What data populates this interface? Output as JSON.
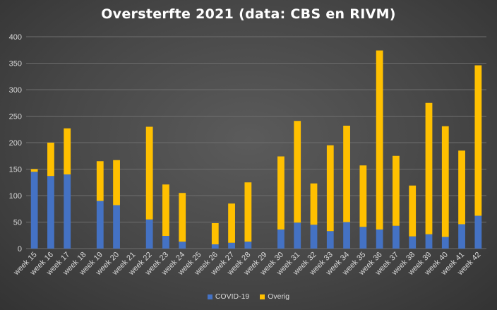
{
  "chart_data": {
    "type": "bar",
    "stacked": true,
    "title": "Oversterfte 2021 (data: CBS en RIVM)",
    "xlabel": "",
    "ylabel": "",
    "ylim": [
      0,
      400
    ],
    "yticks": [
      0,
      50,
      100,
      150,
      200,
      250,
      300,
      350,
      400
    ],
    "grid": true,
    "legend_position": "bottom",
    "categories": [
      "week 15",
      "week 16",
      "week 17",
      "week 18",
      "week 19",
      "week 20",
      "week 21",
      "week 22",
      "week 23",
      "week 24",
      "week 25",
      "week 26",
      "week 27",
      "week 28",
      "week 29",
      "week 30",
      "week 31",
      "week 32",
      "week 33",
      "week 34",
      "week 35",
      "week 36",
      "week 37",
      "week 38",
      "week 39",
      "week 40",
      "week 41",
      "week 42"
    ],
    "series": [
      {
        "name": "COVID-19",
        "color": "#4472c4",
        "values": [
          145,
          137,
          140,
          0,
          90,
          82,
          0,
          55,
          24,
          13,
          0,
          8,
          11,
          13,
          0,
          36,
          49,
          45,
          33,
          50,
          41,
          36,
          43,
          23,
          27,
          22,
          46,
          62
        ]
      },
      {
        "name": "Overig",
        "color": "#ffc000",
        "values": [
          5,
          63,
          87,
          0,
          75,
          85,
          0,
          175,
          97,
          92,
          0,
          40,
          74,
          112,
          0,
          138,
          192,
          78,
          162,
          182,
          116,
          338,
          132,
          96,
          248,
          209,
          139,
          284
        ]
      }
    ]
  },
  "legend": {
    "items": [
      {
        "label": "COVID-19",
        "color": "#4472c4"
      },
      {
        "label": "Overig",
        "color": "#ffc000"
      }
    ]
  }
}
